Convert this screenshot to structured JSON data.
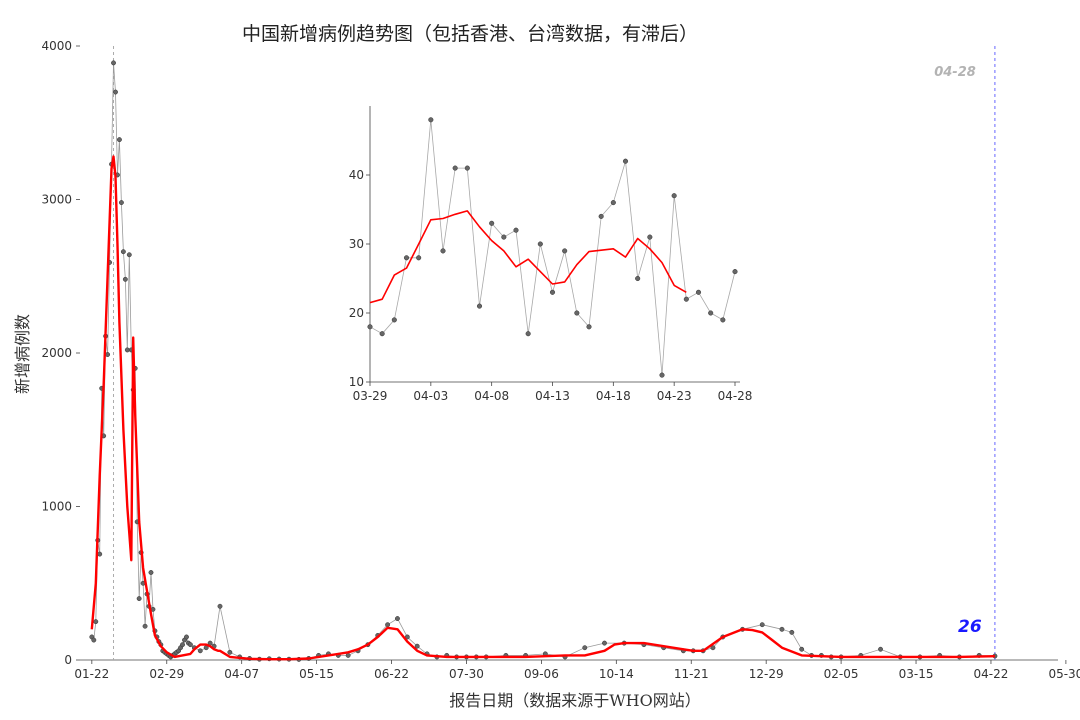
{
  "chart_data": [
    {
      "type": "line",
      "title": "中国新增病例趋势图（包括香港、台湾数据，有滞后）",
      "xlabel": "报告日期（数据来源于WHO网站）",
      "ylabel": "新增病例数",
      "ylim": [
        0,
        4000
      ],
      "yticks": [
        0,
        1000,
        2000,
        3000,
        4000
      ],
      "xticks": [
        "01-22",
        "02-29",
        "04-07",
        "05-15",
        "06-22",
        "07-30",
        "09-06",
        "10-14",
        "11-21",
        "12-29",
        "02-05",
        "03-15",
        "04-22",
        "05-30"
      ],
      "series": [
        {
          "type": "scatter",
          "color": "#555555",
          "x_day": [
            0,
            1,
            2,
            3,
            4,
            5,
            6,
            7,
            8,
            9,
            10,
            11,
            12,
            13,
            14,
            15,
            16,
            17,
            18,
            19,
            20,
            21,
            22,
            23,
            24,
            25,
            26,
            27,
            28,
            29,
            30,
            31,
            32,
            33,
            34,
            35,
            36,
            37,
            38,
            39,
            40,
            41,
            42,
            43,
            44,
            45,
            46,
            47,
            48,
            49,
            50,
            52,
            55,
            58,
            60,
            62,
            65,
            70,
            75,
            80,
            85,
            90,
            95,
            100,
            105,
            110,
            115,
            120,
            125,
            130,
            135,
            140,
            145,
            150,
            155,
            160,
            165,
            170,
            175,
            180,
            185,
            190,
            195,
            200,
            210,
            220,
            230,
            240,
            250,
            260,
            270,
            280,
            290,
            300,
            305,
            310,
            315,
            320,
            330,
            340,
            350,
            355,
            360,
            365,
            370,
            375,
            380,
            390,
            400,
            410,
            420,
            430,
            440,
            450,
            458
          ],
          "values": [
            150,
            130,
            250,
            780,
            690,
            1770,
            1460,
            2110,
            1990,
            2590,
            3230,
            3890,
            3700,
            3160,
            3390,
            2980,
            2660,
            2480,
            2020,
            2640,
            2020,
            1760,
            1900,
            900,
            400,
            700,
            500,
            220,
            430,
            350,
            570,
            330,
            190,
            150,
            120,
            100,
            60,
            50,
            40,
            30,
            20,
            30,
            40,
            50,
            60,
            80,
            100,
            130,
            150,
            110,
            100,
            80,
            60,
            80,
            110,
            90,
            350,
            50,
            20,
            10,
            5,
            8,
            6,
            5,
            4,
            10,
            30,
            40,
            30,
            30,
            60,
            100,
            160,
            230,
            270,
            150,
            90,
            40,
            20,
            30,
            20,
            20,
            20,
            20,
            30,
            30,
            40,
            20,
            80,
            110,
            110,
            100,
            80,
            60,
            60,
            60,
            80,
            150,
            200,
            230,
            200,
            180,
            70,
            30,
            30,
            20,
            20,
            30,
            70,
            20,
            20,
            30,
            20,
            30,
            26
          ]
        },
        {
          "type": "line",
          "name": "",
          "color": "#ff0000",
          "x_day": [
            0,
            2,
            4,
            6,
            8,
            10,
            11,
            12,
            13,
            14,
            16,
            18,
            20,
            21,
            22,
            24,
            26,
            28,
            30,
            32,
            35,
            38,
            42,
            46,
            50,
            52,
            55,
            58,
            60,
            62,
            64,
            65,
            70,
            80,
            90,
            100,
            110,
            120,
            125,
            130,
            135,
            140,
            145,
            150,
            155,
            160,
            165,
            170,
            180,
            190,
            200,
            210,
            220,
            230,
            240,
            250,
            260,
            265,
            270,
            280,
            290,
            300,
            305,
            310,
            320,
            330,
            335,
            340,
            345,
            350,
            360,
            370,
            380,
            390,
            400,
            420,
            440,
            458
          ],
          "values": [
            200,
            500,
            1200,
            1800,
            2500,
            3200,
            3280,
            3150,
            2700,
            2200,
            1500,
            1000,
            650,
            2100,
            1600,
            900,
            600,
            450,
            300,
            160,
            90,
            50,
            20,
            30,
            40,
            70,
            100,
            100,
            90,
            70,
            60,
            60,
            20,
            8,
            5,
            5,
            10,
            30,
            40,
            50,
            70,
            100,
            150,
            210,
            200,
            120,
            60,
            30,
            20,
            20,
            20,
            20,
            20,
            25,
            30,
            30,
            60,
            100,
            110,
            110,
            90,
            70,
            60,
            60,
            150,
            200,
            195,
            180,
            130,
            80,
            30,
            25,
            20,
            20,
            20,
            20,
            20,
            25
          ]
        }
      ],
      "annotations": [
        {
          "text": "04-28",
          "color": "#b3b3b3",
          "placement": "top-right of blue dashed line"
        },
        {
          "text": "26",
          "color": "#1a1aff",
          "placement": "right of last point"
        }
      ],
      "vlines": [
        {
          "x_day": 11,
          "color": "#aaaaaa",
          "style": "dashed"
        },
        {
          "x_day": 458,
          "color": "#6666ff",
          "style": "dashed"
        }
      ],
      "x_range_day": [
        -6,
        490
      ],
      "grid": false
    },
    {
      "type": "line",
      "title": "",
      "ylim": [
        10,
        50
      ],
      "yticks": [
        10,
        20,
        30,
        40
      ],
      "xticks": [
        "03-29",
        "04-03",
        "04-08",
        "04-13",
        "04-18",
        "04-23",
        "04-28"
      ],
      "x_range_day": [
        0,
        30
      ],
      "series": [
        {
          "type": "scatter",
          "color": "#555555",
          "x_day": [
            0,
            1,
            2,
            3,
            4,
            5,
            6,
            7,
            8,
            9,
            10,
            11,
            12,
            13,
            14,
            15,
            16,
            17,
            18,
            19,
            20,
            21,
            22,
            23,
            24,
            25,
            26,
            27,
            28,
            29,
            30
          ],
          "values": [
            18,
            17,
            19,
            28,
            28,
            48,
            29,
            41,
            41,
            21,
            33,
            31,
            32,
            17,
            30,
            23,
            29,
            20,
            18,
            34,
            36,
            42,
            25,
            31,
            11,
            37,
            22,
            23,
            20,
            19,
            26
          ]
        },
        {
          "type": "line",
          "name": "",
          "color": "#ff0000",
          "x_day": [
            0,
            1,
            2,
            3,
            4,
            5,
            6,
            7,
            8,
            9,
            10,
            11,
            12,
            13,
            14,
            15,
            16,
            17,
            18,
            19,
            20,
            21,
            22,
            23,
            24,
            25,
            26
          ],
          "values": [
            21.5,
            22,
            25.5,
            26.5,
            30,
            33.5,
            33.7,
            34.3,
            34.8,
            32.5,
            30.5,
            29,
            26.7,
            27.8,
            26,
            24.2,
            24.5,
            27,
            28.9,
            29.1,
            29.3,
            28.1,
            30.8,
            29.3,
            27.3,
            24,
            23
          ]
        }
      ],
      "grid": false
    }
  ]
}
